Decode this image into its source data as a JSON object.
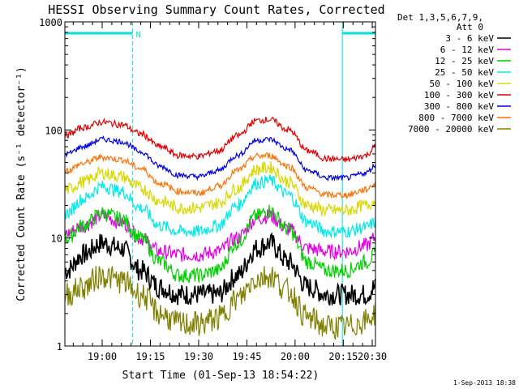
{
  "chart_data": {
    "type": "line",
    "title": "HESSI Observing Summary Count Rates, Corrected",
    "xlabel": "Start Time (01-Sep-13 18:54:22)",
    "ylabel": "Corrected Count Rate (s⁻¹ detector⁻¹)",
    "yscale": "log",
    "ylim": [
      1,
      1000
    ],
    "xlim_min": [
      54.4,
      151.0
    ],
    "x_tick_minutes": [
      66,
      81,
      96,
      111,
      126,
      141,
      150
    ],
    "x_tick_labels": [
      "19:00",
      "19:15",
      "19:30",
      "19:45",
      "20:00",
      "20:15",
      "20:30"
    ],
    "y_ticks": [
      1,
      10,
      100,
      1000
    ],
    "y_tick_labels": [
      "1",
      "10",
      "100",
      "1000"
    ],
    "legend_header": [
      "Det 1,3,5,6,7,9,",
      "Att 0"
    ],
    "legend_position": "right",
    "intervals": {
      "night": [
        [
          54.4,
          75.5
        ],
        [
          140.7,
          151.0
        ]
      ],
      "night_label": "N",
      "saa_lines_min": [
        54.4,
        75.5,
        140.7,
        151.0
      ]
    },
    "x_sample_minutes": [
      55,
      60,
      66,
      72,
      78,
      84,
      90,
      96,
      102,
      108,
      114,
      118,
      124,
      130,
      136,
      142,
      148,
      151
    ],
    "series": [
      {
        "name": "3 - 6 keV",
        "color": "#000000",
        "values": [
          5,
          7,
          9,
          8,
          5,
          3.5,
          3,
          3,
          3,
          4.5,
          8,
          9,
          6,
          3.5,
          3,
          3,
          3,
          3.5
        ]
      },
      {
        "name": "6 - 12 keV",
        "color": "#e000e0",
        "values": [
          11,
          13,
          16,
          14,
          10,
          7.5,
          7,
          7,
          7.5,
          10,
          15,
          16,
          12,
          8,
          7.5,
          7.5,
          8.5,
          10
        ]
      },
      {
        "name": "12 - 25 keV",
        "color": "#00d000",
        "values": [
          10,
          13,
          17,
          15,
          10,
          6,
          4.5,
          4.5,
          5,
          9,
          16,
          18,
          12,
          6,
          5,
          5,
          6,
          7
        ]
      },
      {
        "name": "25 - 50 keV",
        "color": "#00e8e8",
        "values": [
          17,
          23,
          30,
          27,
          19,
          13,
          11.5,
          11.5,
          13,
          20,
          32,
          34,
          25,
          14,
          11.5,
          11.5,
          12.5,
          14
        ]
      },
      {
        "name": "50 - 100 keV",
        "color": "#d8d800",
        "values": [
          28,
          33,
          40,
          37,
          29,
          22,
          19,
          19,
          21,
          29,
          43,
          45,
          33,
          20,
          18,
          18,
          20,
          22
        ]
      },
      {
        "name": "100 - 300 keV",
        "color": "#e00000",
        "values": [
          90,
          105,
          118,
          112,
          92,
          70,
          58,
          57,
          64,
          88,
          122,
          125,
          100,
          64,
          54,
          53,
          58,
          70
        ]
      },
      {
        "name": "300 - 800 keV",
        "color": "#0000e0",
        "values": [
          60,
          70,
          82,
          78,
          63,
          46,
          38,
          37,
          42,
          58,
          80,
          82,
          66,
          42,
          36,
          36,
          40,
          47
        ]
      },
      {
        "name": "800 - 7000 keV",
        "color": "#ff7000",
        "values": [
          42,
          49,
          56,
          53,
          44,
          32,
          27,
          26,
          30,
          42,
          57,
          58,
          46,
          29,
          25,
          25,
          28,
          32
        ]
      },
      {
        "name": "7000 - 20000 keV",
        "color": "#808000",
        "values": [
          3,
          3.5,
          4.5,
          4,
          3,
          2,
          1.6,
          1.6,
          1.8,
          2.7,
          4.2,
          4.5,
          3.2,
          1.8,
          1.5,
          1.5,
          1.7,
          2
        ]
      }
    ],
    "footer": "1-Sep-2013 18:38"
  }
}
